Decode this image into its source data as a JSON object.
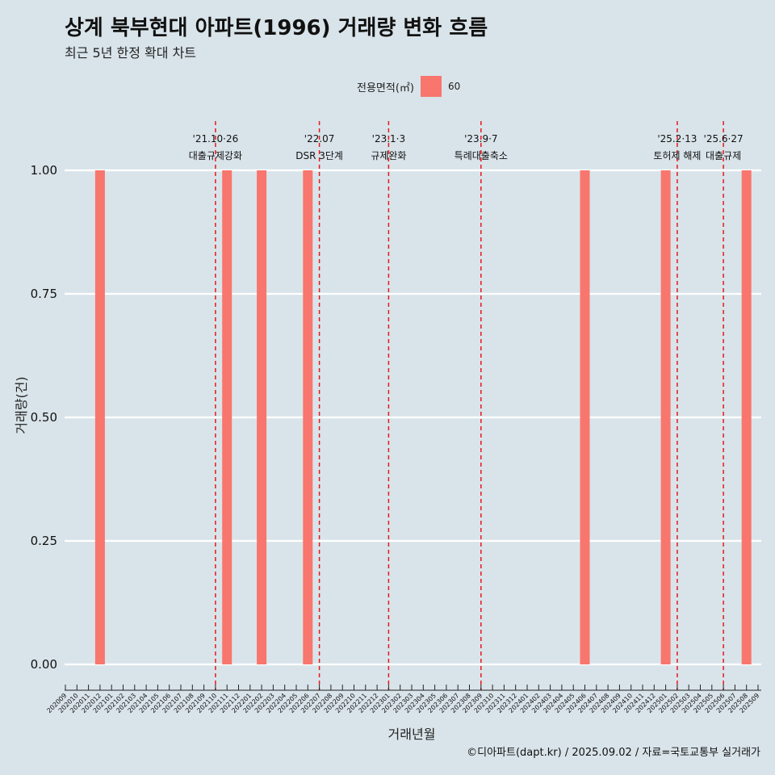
{
  "header": {
    "title": "상계 북부현대 아파트(1996) 거래량 변화 흐름",
    "subtitle": "최근 5년 한정 확대 차트"
  },
  "legend": {
    "title": "전용면적(㎡)",
    "items": [
      {
        "label": "60",
        "color": "#f8766d"
      }
    ]
  },
  "caption": "©디아파트(dapt.kr) / 2025.09.02 / 자료=국토교통부 실거래가",
  "colors": {
    "background": "#d9e4ea",
    "bar": "#f8766d",
    "event_line": "#e41a1c",
    "grid": "#ffffff"
  },
  "chart_data": {
    "type": "bar",
    "title": "상계 북부현대 아파트(1996) 거래량 변화 흐름",
    "subtitle": "최근 5년 한정 확대 차트",
    "xlabel": "거래년월",
    "ylabel": "거래량(건)",
    "ylim": [
      0,
      1
    ],
    "yticks": [
      0.0,
      0.25,
      0.5,
      0.75,
      1.0
    ],
    "ytick_labels": [
      "0.00",
      "0.25",
      "0.50",
      "0.75",
      "1.00"
    ],
    "categories": [
      "202009",
      "202010",
      "202011",
      "202012",
      "202101",
      "202102",
      "202103",
      "202104",
      "202105",
      "202106",
      "202107",
      "202108",
      "202109",
      "202110",
      "202111",
      "202112",
      "202201",
      "202202",
      "202203",
      "202204",
      "202205",
      "202206",
      "202207",
      "202208",
      "202209",
      "202210",
      "202211",
      "202212",
      "202301",
      "202302",
      "202303",
      "202304",
      "202305",
      "202306",
      "202307",
      "202308",
      "202309",
      "202310",
      "202311",
      "202312",
      "202401",
      "202402",
      "202403",
      "202404",
      "202405",
      "202406",
      "202407",
      "202408",
      "202409",
      "202410",
      "202411",
      "202412",
      "202501",
      "202502",
      "202503",
      "202504",
      "202505",
      "202506",
      "202507",
      "202508",
      "202509"
    ],
    "series": [
      {
        "name": "60",
        "color": "#f8766d",
        "points": [
          {
            "x": "202012",
            "value": 1
          },
          {
            "x": "202111",
            "value": 1
          },
          {
            "x": "202202",
            "value": 1
          },
          {
            "x": "202206",
            "value": 1
          },
          {
            "x": "202406",
            "value": 1
          },
          {
            "x": "202501",
            "value": 1
          },
          {
            "x": "202508",
            "value": 1
          }
        ]
      }
    ],
    "events": [
      {
        "x": "202110",
        "date": "'21.10·26",
        "label": "대출규제강화"
      },
      {
        "x": "202207",
        "date": "'22.07",
        "label": "DSR 3단계"
      },
      {
        "x": "202301",
        "date": "'23.1·3",
        "label": "규제완화"
      },
      {
        "x": "202309",
        "date": "'23.9·7",
        "label": "특례대출축소"
      },
      {
        "x": "202502",
        "date": "'25.2·13",
        "label": "토허제 해제"
      },
      {
        "x": "202506",
        "date": "'25.6·27",
        "label": "대출규제"
      }
    ]
  }
}
